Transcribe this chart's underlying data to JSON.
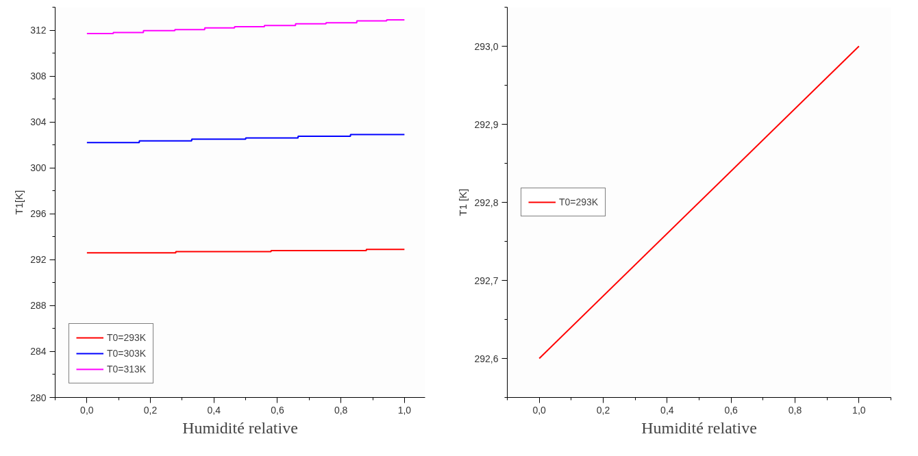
{
  "chart_data": [
    {
      "type": "step",
      "xlabel": "Humidité relative",
      "ylabel": "T1[K]",
      "xlim": [
        -0.1,
        1.065
      ],
      "ylim": [
        280,
        314
      ],
      "xticks": [
        {
          "value": 0,
          "label": "0,0"
        },
        {
          "value": 0.2,
          "label": "0,2"
        },
        {
          "value": 0.4,
          "label": "0,4"
        },
        {
          "value": 0.6,
          "label": "0,6"
        },
        {
          "value": 0.8,
          "label": "0,8"
        },
        {
          "value": 1.0,
          "label": "1,0"
        }
      ],
      "yticks": [
        280,
        284,
        288,
        292,
        296,
        300,
        304,
        308,
        312
      ],
      "legend": "bottom left",
      "grid": false,
      "series": [
        {
          "name": "T0=293K",
          "color": "#ff0000",
          "x": [
            0,
            0.28,
            0.58,
            0.88,
            1.0
          ],
          "values": [
            292.6,
            292.7,
            292.8,
            292.9,
            292.9
          ]
        },
        {
          "name": "T0=303K",
          "color": "#0000ff",
          "x": [
            0,
            0.165,
            0.33,
            0.5,
            0.665,
            0.83,
            1.0
          ],
          "values": [
            302.2,
            302.35,
            302.5,
            302.6,
            302.75,
            302.9,
            302.9
          ]
        },
        {
          "name": "T0=313K",
          "color": "#ff00ff",
          "x": [
            0,
            0.083,
            0.178,
            0.277,
            0.371,
            0.465,
            0.559,
            0.657,
            0.753,
            0.85,
            0.944,
            1.0
          ],
          "values": [
            311.7,
            311.8,
            311.95,
            312.05,
            312.2,
            312.3,
            312.4,
            312.55,
            312.65,
            312.8,
            312.9,
            312.9
          ]
        }
      ]
    },
    {
      "type": "line",
      "xlabel": "Humidité relative",
      "ylabel": "T1 [K]",
      "xlim": [
        -0.1,
        1.1
      ],
      "ylim": [
        292.55,
        293.05
      ],
      "xticks": [
        {
          "value": 0,
          "label": "0,0"
        },
        {
          "value": 0.2,
          "label": "0,2"
        },
        {
          "value": 0.4,
          "label": "0,4"
        },
        {
          "value": 0.6,
          "label": "0,6"
        },
        {
          "value": 0.8,
          "label": "0,8"
        },
        {
          "value": 1.0,
          "label": "1,0"
        }
      ],
      "yticks": [
        {
          "value": 292.6,
          "label": "292,6"
        },
        {
          "value": 292.7,
          "label": "292,7"
        },
        {
          "value": 292.8,
          "label": "292,8"
        },
        {
          "value": 292.9,
          "label": "292,9"
        },
        {
          "value": 293.0,
          "label": "293,0"
        }
      ],
      "legend": "left",
      "grid": false,
      "series": [
        {
          "name": "T0=293K",
          "color": "#ff0000",
          "x": [
            0,
            1.0
          ],
          "values": [
            292.6,
            293.0
          ]
        }
      ]
    }
  ]
}
